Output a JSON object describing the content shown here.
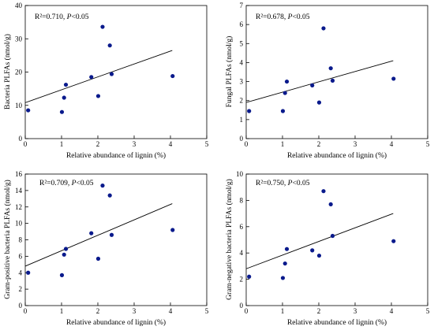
{
  "chart_data": [
    {
      "type": "scatter",
      "xlabel": "Relative abundance of lignin (%)",
      "ylabel": "Bacteria PLFAs (nmol/g)",
      "annotation": {
        "r2": "R²=0.710, ",
        "p_label": "P",
        "p_rest": "<0.05"
      },
      "xlim": [
        0,
        5
      ],
      "ylim": [
        0,
        40
      ],
      "xticks": [
        0,
        1,
        2,
        3,
        4,
        5
      ],
      "yticks": [
        0,
        10,
        20,
        30,
        40
      ],
      "x": [
        0.08,
        1.01,
        1.07,
        1.12,
        1.82,
        2.01,
        2.13,
        2.33,
        2.38,
        4.06
      ],
      "y": [
        8.5,
        8.0,
        12.3,
        16.2,
        18.5,
        12.8,
        33.6,
        28.0,
        19.4,
        18.8
      ],
      "fit": {
        "x": [
          0.0,
          4.05
        ],
        "y": [
          10.8,
          26.5
        ]
      }
    },
    {
      "type": "scatter",
      "xlabel": "Relative abundance of lignin (%)",
      "ylabel": "Fungal PLFAs (nmol/g)",
      "annotation": {
        "r2": "R²=0.678, ",
        "p_label": "P",
        "p_rest": "<0.05"
      },
      "xlim": [
        0,
        5
      ],
      "ylim": [
        0,
        7
      ],
      "xticks": [
        0,
        1,
        2,
        3,
        4,
        5
      ],
      "yticks": [
        0,
        1,
        2,
        3,
        4,
        5,
        6,
        7
      ],
      "x": [
        0.08,
        1.01,
        1.07,
        1.12,
        1.82,
        2.01,
        2.13,
        2.33,
        2.38,
        4.06
      ],
      "y": [
        1.45,
        1.45,
        2.4,
        3.0,
        2.8,
        1.9,
        5.8,
        3.7,
        3.05,
        3.15
      ],
      "fit": {
        "x": [
          0.0,
          4.05
        ],
        "y": [
          1.9,
          4.1
        ]
      }
    },
    {
      "type": "scatter",
      "xlabel": "Relative abundance of lignin (%)",
      "ylabel": "Gram-positive bacteria PLFAs (nmol/g)",
      "annotation": {
        "r2": "R²=0.709, ",
        "p_label": "P",
        "p_rest": "<0.05"
      },
      "xlim": [
        0,
        5
      ],
      "ylim": [
        0,
        16
      ],
      "xticks": [
        0,
        1,
        2,
        3,
        4,
        5
      ],
      "yticks": [
        0,
        2,
        4,
        6,
        8,
        10,
        12,
        14,
        16
      ],
      "x": [
        0.08,
        1.01,
        1.07,
        1.12,
        1.82,
        2.01,
        2.13,
        2.33,
        2.38,
        4.06
      ],
      "y": [
        4.0,
        3.7,
        6.2,
        6.9,
        8.8,
        5.7,
        14.6,
        13.4,
        8.6,
        9.2
      ],
      "fit": {
        "x": [
          0.0,
          4.05
        ],
        "y": [
          4.8,
          12.4
        ]
      }
    },
    {
      "type": "scatter",
      "xlabel": "Relative abundance of lignin (%)",
      "ylabel": "Gram-negative bacteria PLFAs (nmol/g)",
      "annotation": {
        "r2": "R²=0.750, ",
        "p_label": "P",
        "p_rest": "<0.05"
      },
      "xlim": [
        0,
        5
      ],
      "ylim": [
        0,
        10
      ],
      "xticks": [
        0,
        1,
        2,
        3,
        4,
        5
      ],
      "yticks": [
        0,
        2,
        4,
        6,
        8,
        10
      ],
      "x": [
        0.08,
        1.01,
        1.07,
        1.12,
        1.82,
        2.01,
        2.13,
        2.33,
        2.38,
        4.06
      ],
      "y": [
        2.2,
        2.1,
        3.2,
        4.3,
        4.2,
        3.8,
        8.7,
        7.7,
        5.3,
        4.9
      ],
      "fit": {
        "x": [
          0.0,
          4.05
        ],
        "y": [
          2.8,
          7.0
        ]
      }
    }
  ]
}
